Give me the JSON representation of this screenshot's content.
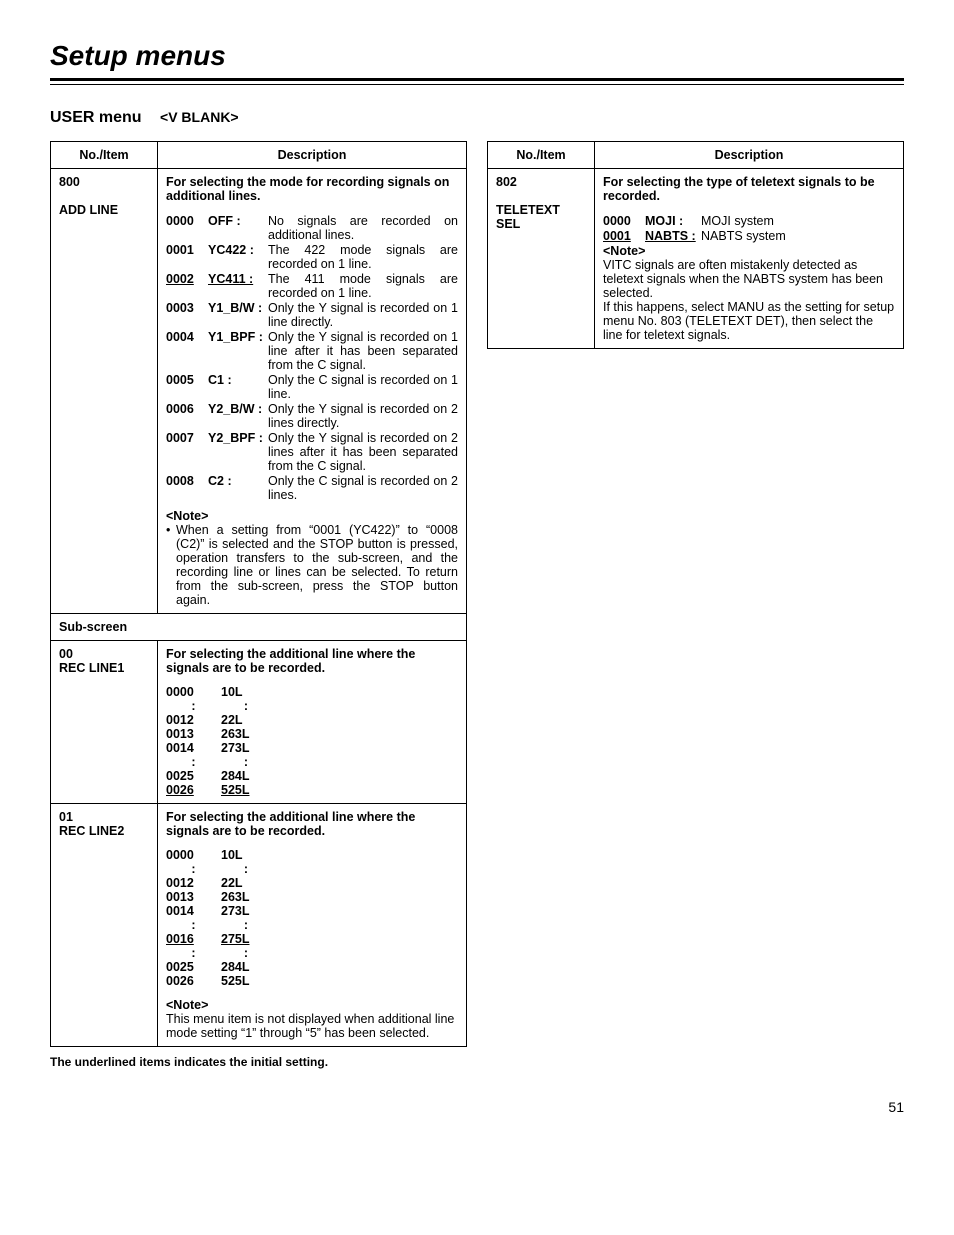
{
  "page_title": "Setup menus",
  "menu_heading": "USER menu",
  "menu_sub": "<V BLANK>",
  "headers": {
    "item": "No./Item",
    "desc": "Description"
  },
  "left": {
    "item800": {
      "no": "800",
      "name": "ADD LINE",
      "intro": "For selecting the mode for recording signals on additional lines.",
      "opts": [
        {
          "code": "0000",
          "label": "OFF :",
          "desc": "No signals are recorded on additional lines."
        },
        {
          "code": "0001",
          "label": "YC422 :",
          "desc": "The 422 mode signals are recorded on 1 line."
        },
        {
          "code": "0002",
          "label": "YC411 :",
          "desc": "The 411 mode signals are recorded on 1 line.",
          "underline": true
        },
        {
          "code": "0003",
          "label": "Y1_B/W :",
          "desc": "Only the Y signal is recorded on 1 line directly."
        },
        {
          "code": "0004",
          "label": "Y1_BPF :",
          "desc": "Only the Y signal is recorded on 1 line after it has been separated from the C signal."
        },
        {
          "code": "0005",
          "label": "C1 :",
          "desc": "Only the C signal is recorded on 1 line."
        },
        {
          "code": "0006",
          "label": "Y2_B/W :",
          "desc": "Only the Y signal is recorded on 2 lines directly."
        },
        {
          "code": "0007",
          "label": "Y2_BPF :",
          "desc": "Only the Y signal is recorded on 2 lines after it has been separated from the C signal."
        },
        {
          "code": "0008",
          "label": "C2 :",
          "desc": "Only the C signal is recorded on 2 lines."
        }
      ],
      "note_label": "<Note>",
      "note": "When a setting from “0001 (YC422)” to “0008 (C2)” is selected and the STOP button is pressed, operation transfers to the sub-screen, and the recording line or lines can be selected. To return from the sub-screen, press the STOP button again."
    },
    "subscreen_label": "Sub-screen",
    "item00": {
      "no": "00",
      "name": "REC LINE1",
      "intro": "For selecting the additional line where the signals are to be recorded.",
      "lines": [
        {
          "code": "0000",
          "val": "10L"
        },
        {
          "code": ":",
          "val": ":",
          "center": true
        },
        {
          "code": "0012",
          "val": "22L"
        },
        {
          "code": "0013",
          "val": "263L"
        },
        {
          "code": "0014",
          "val": "273L"
        },
        {
          "code": ":",
          "val": ":",
          "center": true
        },
        {
          "code": "0025",
          "val": "284L"
        },
        {
          "code": "0026",
          "val": "525L",
          "underline": true
        }
      ]
    },
    "item01": {
      "no": "01",
      "name": "REC LINE2",
      "intro": "For selecting the additional line where the signals are to be recorded.",
      "lines": [
        {
          "code": "0000",
          "val": "10L"
        },
        {
          "code": ":",
          "val": ":",
          "center": true
        },
        {
          "code": "0012",
          "val": "22L"
        },
        {
          "code": "0013",
          "val": "263L"
        },
        {
          "code": "0014",
          "val": "273L"
        },
        {
          "code": ":",
          "val": ":",
          "center": true
        },
        {
          "code": "0016",
          "val": "275L",
          "underline": true
        },
        {
          "code": ":",
          "val": ":",
          "center": true
        },
        {
          "code": "0025",
          "val": "284L"
        },
        {
          "code": "0026",
          "val": "525L"
        }
      ],
      "note_label": "<Note>",
      "note": "This menu item is not displayed when additional line mode setting “1” through “5” has been selected."
    }
  },
  "right": {
    "item802": {
      "no": "802",
      "name": "TELETEXT SEL",
      "intro": "For selecting the type of teletext signals to be recorded.",
      "opts": [
        {
          "code": "0000",
          "label": "MOJI :",
          "desc": "MOJI system"
        },
        {
          "code": "0001",
          "label": "NABTS :",
          "desc": "NABTS system",
          "underline": true
        }
      ],
      "note_label": "<Note>",
      "note1": "VITC signals are often mistakenly detected as teletext signals when the NABTS system has been selected.",
      "note2": "If this happens, select MANU as the setting for setup menu No. 803 (TELETEXT DET), then select the line for teletext signals."
    }
  },
  "footnote": "The underlined items indicates the initial setting.",
  "page_num": "51"
}
